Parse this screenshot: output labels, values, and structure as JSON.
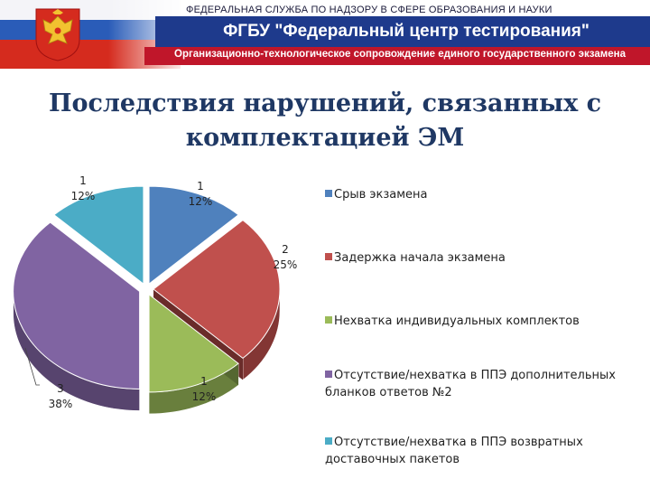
{
  "header": {
    "agency": "ФЕДЕРАЛЬНАЯ СЛУЖБА ПО НАДЗОРУ В СФЕРЕ ОБРАЗОВАНИЯ И НАУКИ",
    "organization": "ФГБУ \"Федеральный центр тестирования\"",
    "subtitle": "Организационно-технологическое сопровождение единого государственного экзамена",
    "colors": {
      "band": "#1e3a8c",
      "subband": "#c0162a",
      "flag_white": "#ffffff",
      "flag_blue": "#2a5cb8",
      "flag_red": "#d52b1e"
    },
    "emblem_icon": "coat-of-arms-icon"
  },
  "title": "Последствия нарушений, связанных с комплектацией ЭМ",
  "chart_data": {
    "type": "pie",
    "style": "3d-exploded",
    "title": "Последствия нарушений, связанных с комплектацией ЭМ",
    "series": [
      {
        "name": "Срыв экзамена",
        "value": 1,
        "percent": "12%",
        "color": "#4f81bd"
      },
      {
        "name": "Задержка начала экзамена",
        "value": 2,
        "percent": "25%",
        "color": "#c0504d"
      },
      {
        "name": "Нехватка индивидуальных комплектов",
        "value": 1,
        "percent": "12%",
        "color": "#9bbb59"
      },
      {
        "name": "Отсутствие/нехватка в ППЭ дополнительных бланков ответов №2",
        "value": 3,
        "percent": "38%",
        "color": "#8064a2"
      },
      {
        "name": "Отсутствие/нехватка в ППЭ возвратных доставочных пакетов",
        "value": 1,
        "percent": "12%",
        "color": "#4bacc6"
      }
    ],
    "legend_position": "right"
  }
}
